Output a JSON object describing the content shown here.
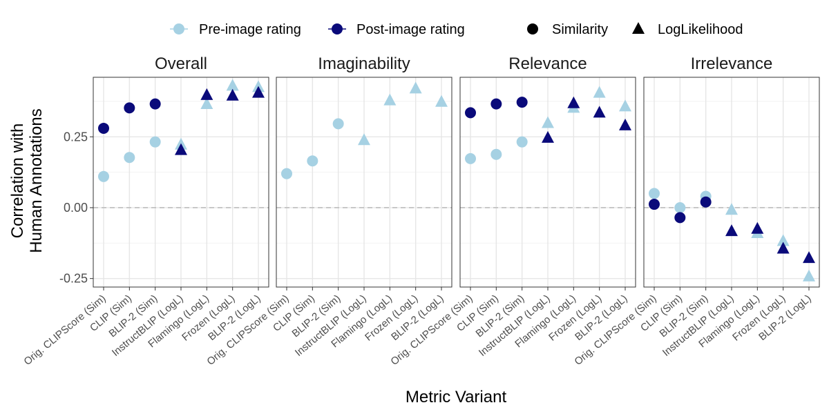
{
  "colors": {
    "pre": "#a6d1e3",
    "post": "#0a0a7a",
    "grid_major": "#e6e6e6",
    "grid_minor": "#f2f2f2",
    "zero_line": "#bdbdbd",
    "panel_border": "#333333"
  },
  "chart_data": {
    "type": "scatter",
    "facets": [
      "Overall",
      "Imaginability",
      "Relevance",
      "Irrelevance"
    ],
    "categories": [
      "Orig. CLIPScore (Sim)",
      "CLIP (Sim)",
      "BLIP-2 (Sim)",
      "InstructBLIP (LogL)",
      "Flamingo (LogL)",
      "Frozen (LogL)",
      "BLIP-2 (LogL)"
    ],
    "shapes": [
      "circle",
      "circle",
      "circle",
      "triangle",
      "triangle",
      "triangle",
      "triangle"
    ],
    "xlabel": "Metric Variant",
    "ylabel": [
      "Correlation with",
      "Human Annotations"
    ],
    "ylim": [
      -0.28,
      0.46
    ],
    "yticks": [
      -0.25,
      0.0,
      0.25
    ],
    "ytick_labels": [
      "-0.25",
      "0.00",
      "0.25"
    ],
    "reference_line": 0.0,
    "legend": {
      "position": "top",
      "color_items": [
        {
          "key": "pre",
          "label": "Pre-image rating"
        },
        {
          "key": "post",
          "label": "Post-image rating"
        }
      ],
      "shape_items": [
        {
          "key": "circle",
          "label": "Similarity"
        },
        {
          "key": "triangle",
          "label": "LogLikelihood"
        }
      ]
    },
    "series": [
      {
        "name": "Pre-image rating",
        "key": "pre",
        "values": {
          "Overall": [
            0.11,
            0.177,
            0.232,
            0.222,
            0.365,
            0.43,
            0.425
          ],
          "Imaginability": [
            0.12,
            0.165,
            0.296,
            0.238,
            0.378,
            0.42,
            0.373
          ],
          "Relevance": [
            0.173,
            0.188,
            0.232,
            0.298,
            0.352,
            0.405,
            0.357
          ],
          "Irrelevance": [
            0.05,
            0.0,
            0.04,
            -0.008,
            -0.09,
            -0.118,
            -0.243
          ]
        }
      },
      {
        "name": "Post-image rating",
        "key": "post",
        "values": {
          "Overall": [
            0.28,
            0.352,
            0.366,
            0.203,
            0.397,
            0.395,
            0.405
          ],
          "Imaginability": [
            null,
            null,
            null,
            null,
            null,
            null,
            null
          ],
          "Relevance": [
            0.335,
            0.366,
            0.372,
            0.246,
            0.368,
            0.335,
            0.29
          ],
          "Irrelevance": [
            0.012,
            -0.035,
            0.02,
            -0.083,
            -0.075,
            -0.145,
            -0.178
          ]
        }
      }
    ]
  }
}
